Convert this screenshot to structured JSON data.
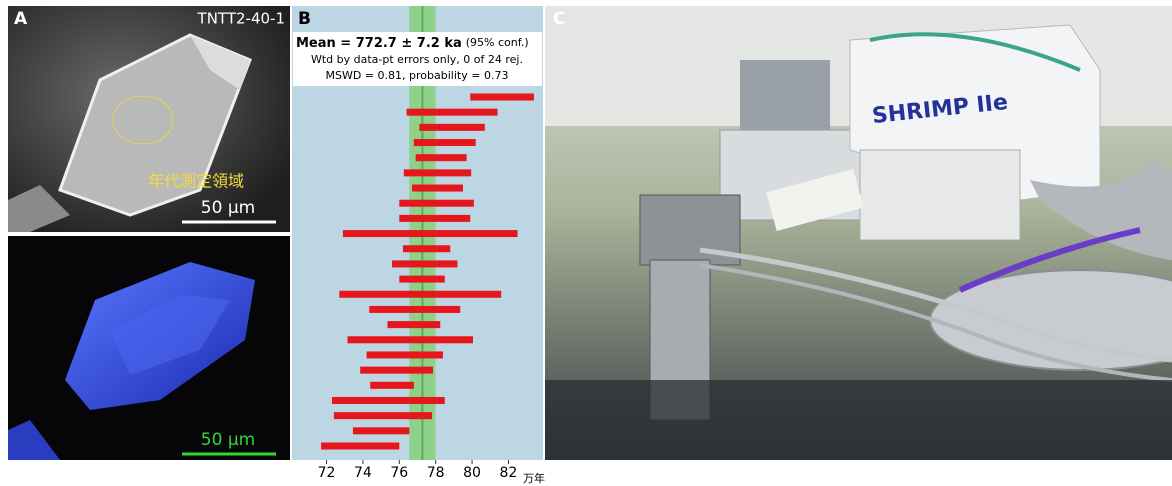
{
  "panels": {
    "a": {
      "label": "A",
      "sample": "TNTT2-40-1",
      "annotation": "年代測定領域",
      "scale_top": "50 μm",
      "scale_bottom": "50 μm"
    },
    "b": {
      "label": "B"
    },
    "c": {
      "label": "C",
      "instrument": "SHRIMP IIe"
    }
  },
  "chart_data": {
    "type": "errorbar",
    "title": "Mean = 772.7 ± 7.2 ka",
    "title_note": "(95% conf.)",
    "subtitle": [
      "Wtd by data-pt errors only, 0 of 24 rej.",
      "MSWD = 0.81, probability = 0.73"
    ],
    "xlabel": "万年",
    "values": [
      81.65,
      78.9,
      78.9,
      78.5,
      78.3,
      78.1,
      78.1,
      78.05,
      77.95,
      77.7,
      77.5,
      77.4,
      77.25,
      77.15,
      76.85,
      76.8,
      76.6,
      76.3,
      75.85,
      75.6,
      75.4,
      75.1,
      75.0,
      73.85
    ],
    "errors": [
      1.75,
      2.5,
      1.8,
      1.7,
      1.4,
      1.85,
      1.4,
      2.05,
      1.95,
      4.8,
      1.3,
      1.8,
      1.25,
      4.45,
      2.5,
      1.45,
      3.45,
      2.1,
      2.0,
      1.2,
      3.1,
      2.7,
      1.55,
      2.15
    ],
    "color": "#e5161c",
    "mean": 77.27,
    "mean_error": 0.72,
    "mean_color": "#8fd08a",
    "mean_line_color": "#55b055",
    "background": "#bcd6e3",
    "xlim": [
      70.1,
      83.9
    ],
    "xticks": [
      72,
      74,
      76,
      78,
      80,
      82
    ]
  }
}
